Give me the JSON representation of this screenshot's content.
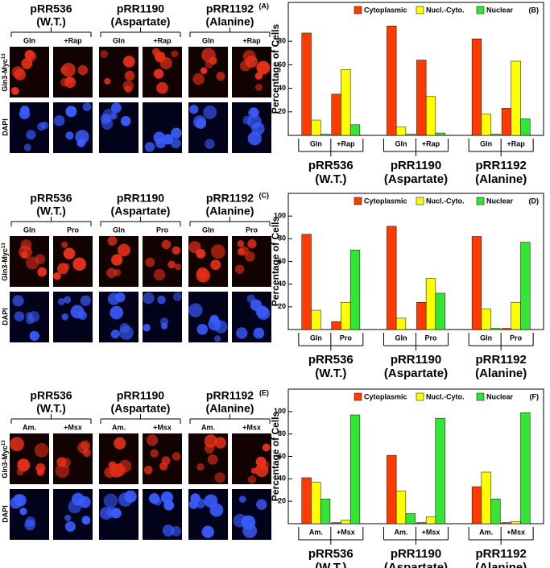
{
  "panels": [
    {
      "letter": "(A)",
      "strains": [
        [
          "pRR536",
          "(W.T.)"
        ],
        [
          "pRR1190",
          "(Aspartate)"
        ],
        [
          "pRR1192",
          "(Alanine)"
        ]
      ],
      "conditions": [
        "Gln",
        "+Rap"
      ],
      "stain": "Gln3-Myc",
      "stain_sup": "13",
      "dapi": "DAPI"
    },
    {
      "letter": "(C)",
      "strains": [
        [
          "pRR536",
          "(W.T.)"
        ],
        [
          "pRR1190",
          "(Aspartate)"
        ],
        [
          "pRR1192",
          "(Alanine)"
        ]
      ],
      "conditions": [
        "Gln",
        "Pro"
      ],
      "stain": "Gln3-Myc",
      "stain_sup": "13",
      "dapi": "DAPI"
    },
    {
      "letter": "(E)",
      "strains": [
        [
          "pRR536",
          "(W.T.)"
        ],
        [
          "pRR1190",
          "(Aspartate)"
        ],
        [
          "pRR1192",
          "(Alanine)"
        ]
      ],
      "conditions": [
        "Am.",
        "+Msx"
      ],
      "stain": "Gln3-Myc",
      "stain_sup": "13",
      "dapi": "DAPI"
    }
  ],
  "chart_data": [
    {
      "type": "bar",
      "panel_label": "(B)",
      "y_label": "Percentage of Cells",
      "categories": [
        "Gln",
        "+Rap",
        "Gln",
        "+Rap",
        "Gln",
        "+Rap"
      ],
      "groups": [
        [
          "pRR536",
          "(W.T.)"
        ],
        [
          "pRR1190",
          "(Aspartate)"
        ],
        [
          "pRR1192",
          "(Alanine)"
        ]
      ],
      "series": [
        {
          "name": "Cytoplasmic",
          "color": "#ff3b00",
          "values": [
            87,
            35,
            93,
            64,
            82,
            23
          ]
        },
        {
          "name": "Nucl.-Cyto.",
          "color": "#ffff00",
          "values": [
            13,
            56,
            7,
            33,
            18,
            63
          ]
        },
        {
          "name": "Nuclear",
          "color": "#33e633",
          "values": [
            1,
            9,
            1,
            2,
            1,
            14
          ]
        }
      ],
      "ylim": [
        0,
        113
      ],
      "yticks": [
        20,
        40,
        60,
        80
      ],
      "legend": "top"
    },
    {
      "type": "bar",
      "panel_label": "(D)",
      "y_label": "Percentage of Cells",
      "categories": [
        "Gln",
        "Pro",
        "Gln",
        "Pro",
        "Gln",
        "Pro"
      ],
      "groups": [
        [
          "pRR536",
          "(W.T.)"
        ],
        [
          "pRR1190",
          "(Aspartate)"
        ],
        [
          "pRR1192",
          "(Alanine)"
        ]
      ],
      "series": [
        {
          "name": "Cytoplasmic",
          "color": "#ff3b00",
          "values": [
            84,
            7,
            91,
            24,
            82,
            1
          ]
        },
        {
          "name": "Nucl.-Cyto.",
          "color": "#ffff00",
          "values": [
            17,
            24,
            10,
            45,
            18,
            24
          ]
        },
        {
          "name": "Nuclear",
          "color": "#33e633",
          "values": [
            0,
            70,
            0,
            32,
            1,
            77
          ]
        }
      ],
      "ylim": [
        0,
        120
      ],
      "yticks": [
        20,
        40,
        60,
        80,
        100
      ],
      "legend": "top"
    },
    {
      "type": "bar",
      "panel_label": "(F)",
      "y_label": "Percentage of Cells",
      "categories": [
        "Am.",
        "+Msx",
        "Am.",
        "+Msx",
        "Am.",
        "+Msx"
      ],
      "groups": [
        [
          "pRR536",
          "(W.T.)"
        ],
        [
          "pRR1190",
          "(Aspartate)"
        ],
        [
          "pRR1192",
          "(Alanine)"
        ]
      ],
      "series": [
        {
          "name": "Cytoplasmic",
          "color": "#ff3b00",
          "values": [
            41,
            1,
            61,
            1,
            33,
            1
          ]
        },
        {
          "name": "Nucl.-Cyto.",
          "color": "#ffff00",
          "values": [
            37,
            3,
            29,
            6,
            46,
            2
          ]
        },
        {
          "name": "Nuclear",
          "color": "#33e633",
          "values": [
            22,
            97,
            9,
            94,
            22,
            99
          ]
        }
      ],
      "ylim": [
        0,
        120
      ],
      "yticks": [
        20,
        40,
        60,
        80,
        100
      ],
      "legend": "top"
    }
  ]
}
